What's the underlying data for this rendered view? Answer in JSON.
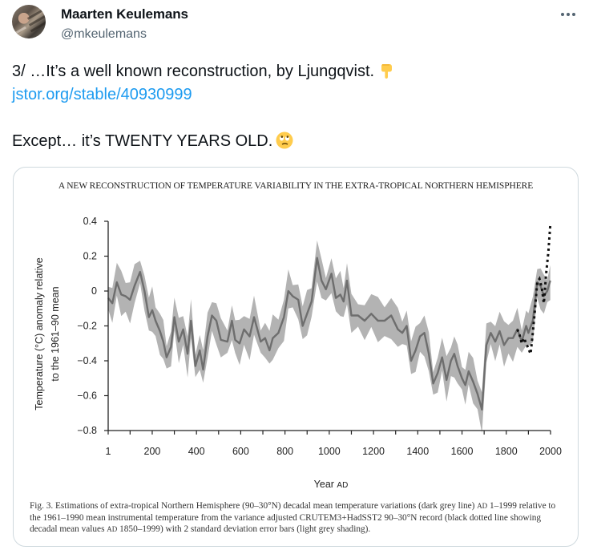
{
  "author": {
    "name": "Maarten Keulemans",
    "handle": "@mkeulemans"
  },
  "menu": {
    "icon": "more-horizontal-icon"
  },
  "tweet": {
    "line1": "3/ …It’s a well known reconstruction, by Ljungqvist.",
    "line1_emoji": "backhand-index-pointing-down",
    "link": "jstor.org/stable/40930999",
    "line3": "Except… it’s TWENTY YEARS OLD.",
    "line3_emoji": "face-with-rolling-eyes"
  },
  "figure": {
    "header": "A NEW RECONSTRUCTION OF TEMPERATURE VARIABILITY IN THE EXTRA-TROPICAL NORTHERN HEMISPHERE",
    "caption_parts": [
      "Fig. 3. Estimations of extra-tropical Northern Hemisphere (90–30°N) decadal mean temperature variations (dark grey line) ",
      "AD",
      " 1–1999 relative to the 1961–1990 mean instrumental temperature from the variance adjusted CRUTEM3+HadSST2 90–30°N record (black dotted line showing decadal mean values ",
      "AD",
      " 1850–1999) with 2 standard deviation error bars (light grey shading)."
    ]
  },
  "chart_data": {
    "type": "line",
    "title": "",
    "xlabel": "Year",
    "xlabel_suffix": "AD",
    "ylabel_lines": [
      "Temperature (°C) anomaly relative",
      "to the 1961–90 mean"
    ],
    "xlim": [
      1,
      2000
    ],
    "ylim": [
      -0.8,
      0.4
    ],
    "x_ticks": [
      1,
      200,
      400,
      600,
      800,
      1000,
      1200,
      1400,
      1600,
      1800,
      2000
    ],
    "x_minor_ticks": [
      100,
      300,
      500,
      700,
      900,
      1100,
      1300,
      1500,
      1700,
      1900
    ],
    "y_ticks": [
      0.4,
      0.2,
      0,
      -0.2,
      -0.4,
      -0.6,
      -0.8
    ],
    "y_tick_labels": [
      "0.4",
      "0.2",
      "0",
      "−0.2",
      "−0.4",
      "−0.6",
      "−0.8"
    ],
    "grid": false,
    "series": [
      {
        "name": "Reconstruction (decadal mean, dark grey line)",
        "color": "#6e6e6e",
        "error_band": "2 standard deviations (light grey shading)",
        "band_color": "#b3b3b3",
        "x": [
          1,
          20,
          40,
          60,
          80,
          100,
          120,
          145,
          165,
          185,
          200,
          215,
          235,
          250,
          265,
          285,
          300,
          320,
          340,
          360,
          375,
          395,
          415,
          430,
          450,
          470,
          490,
          510,
          540,
          560,
          575,
          595,
          615,
          640,
          660,
          690,
          710,
          730,
          745,
          770,
          795,
          815,
          835,
          860,
          880,
          900,
          920,
          945,
          965,
          985,
          1010,
          1030,
          1050,
          1065,
          1080,
          1100,
          1130,
          1160,
          1190,
          1220,
          1250,
          1280,
          1310,
          1330,
          1350,
          1370,
          1390,
          1410,
          1430,
          1450,
          1470,
          1490,
          1510,
          1530,
          1550,
          1565,
          1580,
          1600,
          1615,
          1630,
          1650,
          1670,
          1690,
          1710,
          1730,
          1750,
          1770,
          1790,
          1810,
          1830,
          1850,
          1870,
          1890,
          1900,
          1920,
          1940,
          1955,
          1970,
          1985,
          1999
        ],
        "values": [
          -0.04,
          -0.07,
          0.05,
          -0.02,
          -0.03,
          -0.05,
          0.03,
          0.11,
          0.0,
          -0.15,
          -0.11,
          -0.17,
          -0.23,
          -0.29,
          -0.38,
          -0.32,
          -0.15,
          -0.29,
          -0.22,
          -0.36,
          -0.17,
          -0.43,
          -0.34,
          -0.45,
          -0.26,
          -0.14,
          -0.17,
          -0.28,
          -0.29,
          -0.17,
          -0.28,
          -0.3,
          -0.22,
          -0.26,
          -0.15,
          -0.29,
          -0.27,
          -0.34,
          -0.27,
          -0.24,
          -0.15,
          0.0,
          -0.03,
          -0.05,
          -0.2,
          -0.13,
          -0.06,
          0.19,
          0.06,
          0.01,
          0.1,
          -0.04,
          -0.02,
          -0.06,
          0.06,
          -0.14,
          -0.14,
          -0.17,
          -0.13,
          -0.17,
          -0.17,
          -0.14,
          -0.22,
          -0.24,
          -0.2,
          -0.4,
          -0.34,
          -0.26,
          -0.24,
          -0.36,
          -0.53,
          -0.47,
          -0.38,
          -0.51,
          -0.4,
          -0.36,
          -0.43,
          -0.5,
          -0.54,
          -0.46,
          -0.52,
          -0.59,
          -0.68,
          -0.31,
          -0.24,
          -0.29,
          -0.23,
          -0.31,
          -0.27,
          -0.27,
          -0.22,
          -0.29,
          -0.2,
          -0.24,
          -0.17,
          0.05,
          0.03,
          -0.03,
          0.0,
          0.06
        ],
        "band_halfwidth": 0.1
      },
      {
        "name": "CRUTEM3+HadSST2 90–30°N instrumental (decadal mean, black dotted line)",
        "color": "#111111",
        "style": "dotted",
        "x": [
          1850,
          1860,
          1870,
          1880,
          1890,
          1900,
          1910,
          1920,
          1930,
          1940,
          1950,
          1960,
          1970,
          1980,
          1990,
          1999
        ],
        "values": [
          -0.22,
          -0.25,
          -0.3,
          -0.27,
          -0.3,
          -0.33,
          -0.36,
          -0.24,
          -0.1,
          0.05,
          0.07,
          0.02,
          -0.07,
          0.1,
          0.22,
          0.38
        ]
      }
    ]
  }
}
